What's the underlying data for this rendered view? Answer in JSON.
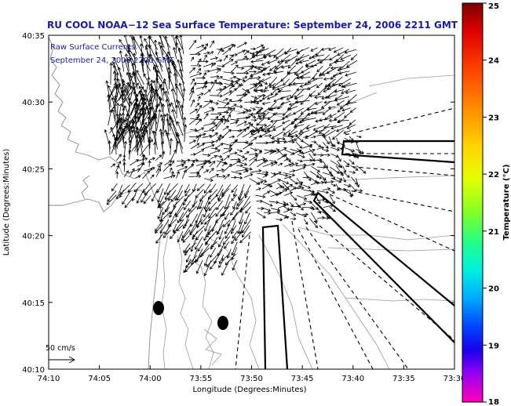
{
  "title": "RU COOL  NOAA−12  Sea Surface Temperature:  September 24, 2006 2211 GMT",
  "legend_inset": {
    "line1": "Raw Surface Currents",
    "line2": "September 24, 2006 2200 GMT"
  },
  "axes": {
    "xlabel": "Longitude (Degrees:Minutes)",
    "ylabel": "Latitude (Degrees:Minutes)",
    "xticks": [
      "74:10",
      "74:05",
      "74:00",
      "73:55",
      "73:50",
      "73:45",
      "73:40",
      "73:35",
      "73:30"
    ],
    "yticks": [
      "40:35",
      "40:30",
      "40:25",
      "40:20",
      "40:15",
      "40:10"
    ]
  },
  "scale_arrow": {
    "label": "50 cm/s"
  },
  "colorbar": {
    "label": "Temperature (°C)",
    "ticks": [
      "25",
      "24",
      "23",
      "22",
      "21",
      "20",
      "19",
      "18"
    ],
    "min": 18,
    "max": 25
  },
  "colors": {
    "title": "#1a1aa6",
    "vector": "#000000",
    "contour": "#7f7f7f"
  }
}
